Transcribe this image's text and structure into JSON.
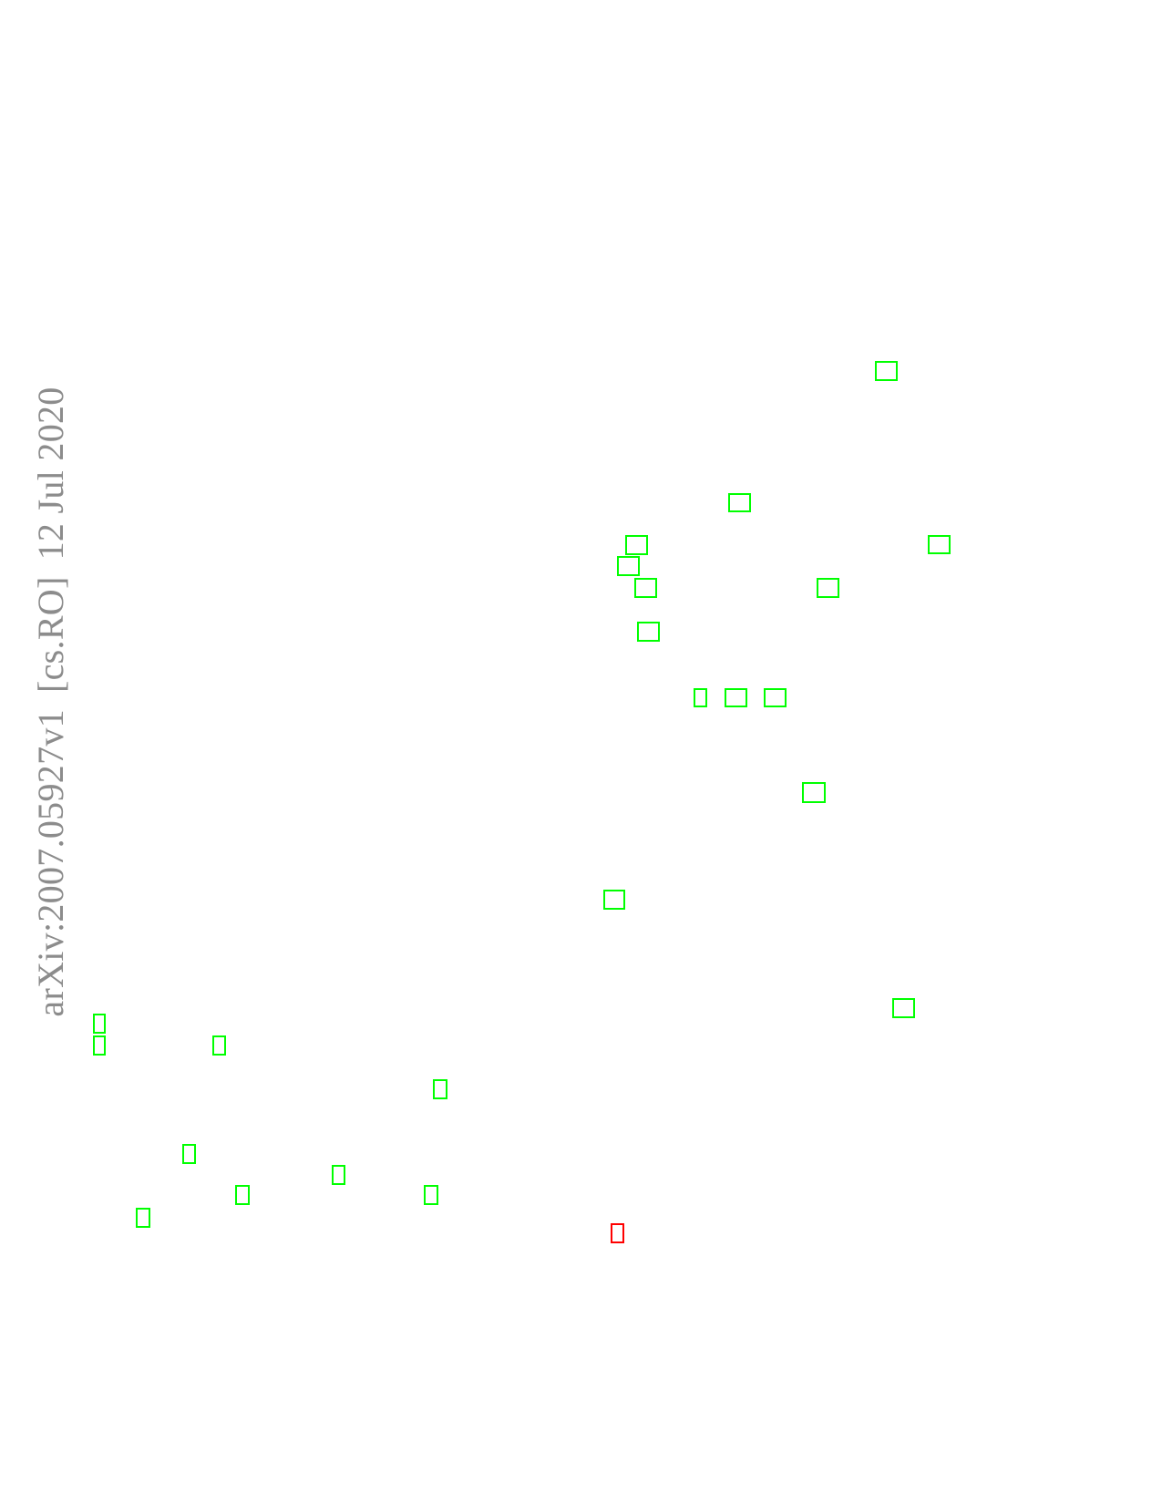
{
  "page": {
    "arxiv_stamp": {
      "identifier": "arXiv:2007.05927v1",
      "category": "[cs.RO]",
      "date": "12 Jul 2020"
    },
    "colors": {
      "background": "#ffffff",
      "stamp_text": "#8c8c8c",
      "glyph_box": "#00ff00",
      "glyph_box_alt": "#ff0000"
    },
    "glyph_boxes": {
      "primary_count_label": "",
      "alt_count_label": ""
    }
  }
}
